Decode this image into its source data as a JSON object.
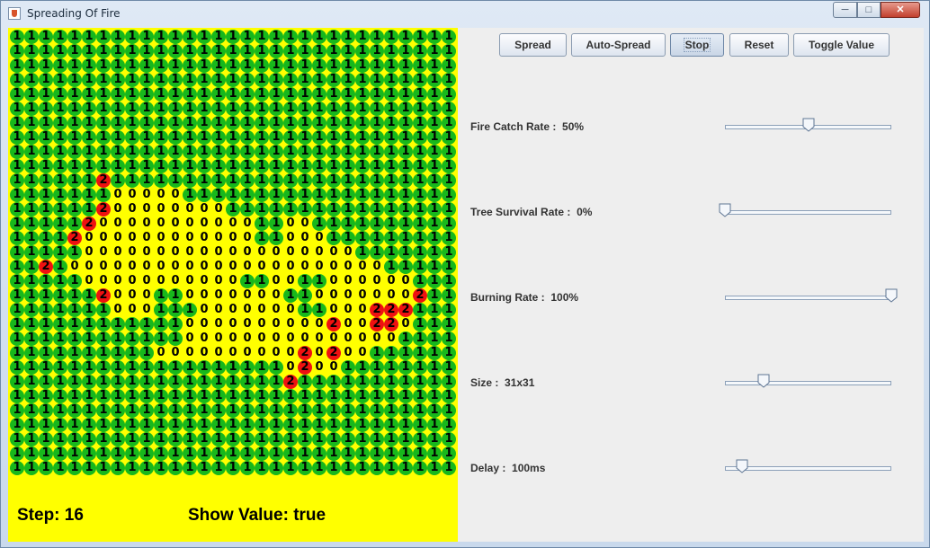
{
  "window": {
    "title": "Spreading Of Fire",
    "min_icon": "minimize-icon",
    "max_icon": "maximize-icon",
    "close_icon": "close-icon"
  },
  "buttons": [
    {
      "id": "spread",
      "label": "Spread"
    },
    {
      "id": "auto-spread",
      "label": "Auto-Spread"
    },
    {
      "id": "stop",
      "label": "Stop"
    },
    {
      "id": "reset",
      "label": "Reset"
    },
    {
      "id": "toggle-value",
      "label": "Toggle Value"
    }
  ],
  "controls": {
    "fire_catch_rate": {
      "label": "Fire Catch Rate :",
      "value": "50%",
      "fraction": 0.5
    },
    "tree_survival_rate": {
      "label": "Tree Survival Rate :",
      "value": "0%",
      "fraction": 0.0
    },
    "burning_rate": {
      "label": "Burning Rate :",
      "value": "100%",
      "fraction": 1.0
    },
    "size": {
      "label": "Size :",
      "value": "31x31",
      "fraction": 0.23
    },
    "delay": {
      "label": "Delay :",
      "value": "100ms",
      "fraction": 0.1
    }
  },
  "status": {
    "step": "Step: 16",
    "show_value": "Show Value: true"
  },
  "colors": {
    "tree": "#17b81c",
    "burning": "#ee1111",
    "background": "#ffff00"
  },
  "grid": {
    "size": 31,
    "rows": [
      "1111111111111111111111111111111",
      "1111111111111111111111111111111",
      "1111111111111111111111111111111",
      "1111111111111111111111111111111",
      "1111111111111111111111111111111",
      "1111111111111111111111111111111",
      "1111111111111111111111111111111",
      "1111111111111111111111111111111",
      "1111111111111111111111111111111",
      "1111111111111111111111111111111",
      "1111112111111111111111111111111",
      "1111111000001111111111111111111",
      "1111112000000001111111111111111",
      "1111120000000000011001111111111",
      "1111200000000000011000111111111",
      "1111100000000000000000001111111",
      "1121000000000000000000000011111",
      "1111100000000000110011000000111",
      "1111112000110000000110000000211",
      "1111111000111000000011000222111",
      "1111111111110000000000200220111",
      "1111111111110000000000000001111",
      "1111111111000000000020200111111",
      "1111111111111111111020011111111",
      "1111111111111111111211111111111",
      "1111111111111111111111111111111",
      "1111111111111111111111111111111",
      "1111111111111111111111111111111",
      "1111111111111111111111111111111",
      "1111111111111111111111111111111",
      "1111111111111111111111111111111"
    ]
  }
}
